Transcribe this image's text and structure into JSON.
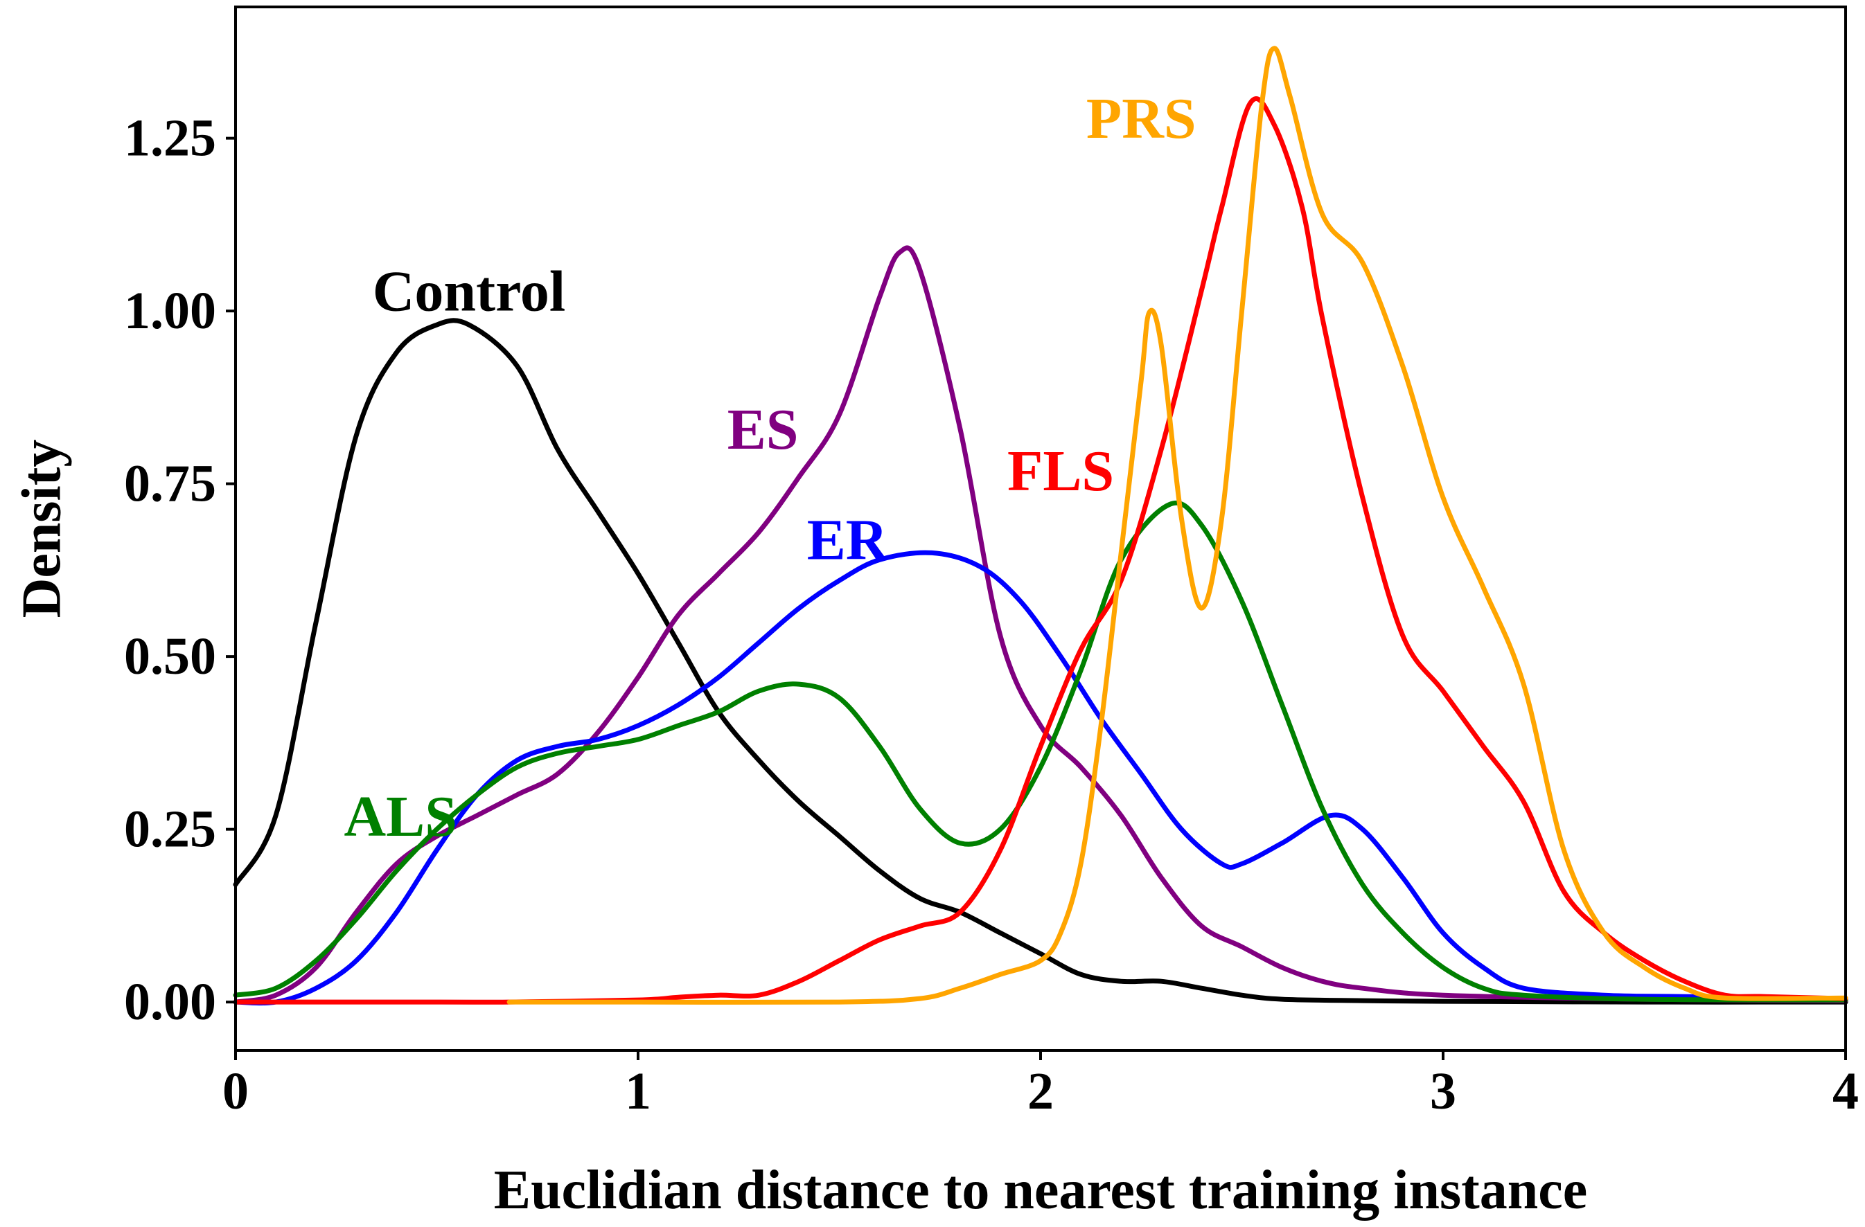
{
  "chart_data": {
    "type": "line",
    "title": "",
    "xlabel": "Euclidian distance to nearest training instance",
    "ylabel": "Density",
    "xlim": [
      0,
      4
    ],
    "ylim": [
      -0.07,
      1.44
    ],
    "xticks": [
      0,
      1,
      2,
      3,
      4
    ],
    "xtick_labels": [
      "0",
      "1",
      "2",
      "3",
      "4"
    ],
    "yticks": [
      0,
      0.25,
      0.5,
      0.75,
      1.0,
      1.25
    ],
    "ytick_labels": [
      "0.00",
      "0.25",
      "0.50",
      "0.75",
      "1.00",
      "1.25"
    ],
    "grid": false,
    "legend": "none (series labelled directly on the plot)",
    "series": [
      {
        "name": "Control",
        "color": "#000000",
        "label_at": [
          0.58,
          1.02
        ],
        "points": [
          [
            0,
            0.17
          ],
          [
            0.1,
            0.27
          ],
          [
            0.2,
            0.55
          ],
          [
            0.3,
            0.82
          ],
          [
            0.4,
            0.94
          ],
          [
            0.5,
            0.98
          ],
          [
            0.58,
            0.98
          ],
          [
            0.7,
            0.92
          ],
          [
            0.8,
            0.8
          ],
          [
            0.9,
            0.71
          ],
          [
            1.0,
            0.62
          ],
          [
            1.1,
            0.52
          ],
          [
            1.2,
            0.42
          ],
          [
            1.3,
            0.35
          ],
          [
            1.4,
            0.29
          ],
          [
            1.5,
            0.24
          ],
          [
            1.6,
            0.19
          ],
          [
            1.7,
            0.15
          ],
          [
            1.8,
            0.13
          ],
          [
            1.9,
            0.1
          ],
          [
            2.0,
            0.07
          ],
          [
            2.1,
            0.04
          ],
          [
            2.2,
            0.03
          ],
          [
            2.3,
            0.03
          ],
          [
            2.4,
            0.02
          ],
          [
            2.5,
            0.01
          ],
          [
            2.6,
            0.004
          ],
          [
            2.8,
            0.002
          ],
          [
            3.0,
            0.001
          ],
          [
            3.5,
            0
          ],
          [
            4.0,
            0
          ]
        ]
      },
      {
        "name": "ES",
        "color": "#800080",
        "label_at": [
          1.31,
          0.82
        ],
        "points": [
          [
            0,
            0
          ],
          [
            0.1,
            0.01
          ],
          [
            0.2,
            0.05
          ],
          [
            0.3,
            0.13
          ],
          [
            0.4,
            0.2
          ],
          [
            0.5,
            0.24
          ],
          [
            0.6,
            0.27
          ],
          [
            0.7,
            0.3
          ],
          [
            0.8,
            0.33
          ],
          [
            0.9,
            0.39
          ],
          [
            1.0,
            0.47
          ],
          [
            1.1,
            0.56
          ],
          [
            1.2,
            0.62
          ],
          [
            1.3,
            0.68
          ],
          [
            1.4,
            0.76
          ],
          [
            1.5,
            0.85
          ],
          [
            1.6,
            1.02
          ],
          [
            1.65,
            1.085
          ],
          [
            1.7,
            1.06
          ],
          [
            1.8,
            0.83
          ],
          [
            1.9,
            0.53
          ],
          [
            2.0,
            0.4
          ],
          [
            2.1,
            0.34
          ],
          [
            2.2,
            0.27
          ],
          [
            2.3,
            0.18
          ],
          [
            2.4,
            0.11
          ],
          [
            2.5,
            0.08
          ],
          [
            2.6,
            0.05
          ],
          [
            2.7,
            0.03
          ],
          [
            2.8,
            0.02
          ],
          [
            3.0,
            0.01
          ],
          [
            3.5,
            0.004
          ],
          [
            4.0,
            0.002
          ]
        ]
      },
      {
        "name": "ER",
        "color": "#0000ff",
        "label_at": [
          1.52,
          0.66
        ],
        "points": [
          [
            0,
            0
          ],
          [
            0.1,
            0
          ],
          [
            0.2,
            0.02
          ],
          [
            0.3,
            0.06
          ],
          [
            0.4,
            0.13
          ],
          [
            0.5,
            0.22
          ],
          [
            0.6,
            0.3
          ],
          [
            0.7,
            0.35
          ],
          [
            0.8,
            0.37
          ],
          [
            0.9,
            0.38
          ],
          [
            1.0,
            0.4
          ],
          [
            1.1,
            0.43
          ],
          [
            1.2,
            0.47
          ],
          [
            1.3,
            0.52
          ],
          [
            1.4,
            0.57
          ],
          [
            1.5,
            0.61
          ],
          [
            1.6,
            0.64
          ],
          [
            1.73,
            0.65
          ],
          [
            1.85,
            0.63
          ],
          [
            1.95,
            0.58
          ],
          [
            2.05,
            0.5
          ],
          [
            2.15,
            0.41
          ],
          [
            2.25,
            0.33
          ],
          [
            2.35,
            0.25
          ],
          [
            2.45,
            0.2
          ],
          [
            2.5,
            0.2
          ],
          [
            2.6,
            0.23
          ],
          [
            2.72,
            0.27
          ],
          [
            2.8,
            0.25
          ],
          [
            2.9,
            0.18
          ],
          [
            3.0,
            0.1
          ],
          [
            3.1,
            0.05
          ],
          [
            3.2,
            0.02
          ],
          [
            3.4,
            0.01
          ],
          [
            3.6,
            0.008
          ],
          [
            4.0,
            0.005
          ]
        ]
      },
      {
        "name": "ALS",
        "color": "#008000",
        "label_at": [
          0.41,
          0.26
        ],
        "points": [
          [
            0,
            0.01
          ],
          [
            0.1,
            0.02
          ],
          [
            0.2,
            0.06
          ],
          [
            0.3,
            0.12
          ],
          [
            0.4,
            0.19
          ],
          [
            0.5,
            0.25
          ],
          [
            0.6,
            0.3
          ],
          [
            0.7,
            0.34
          ],
          [
            0.8,
            0.36
          ],
          [
            0.9,
            0.37
          ],
          [
            1.0,
            0.38
          ],
          [
            1.1,
            0.4
          ],
          [
            1.2,
            0.42
          ],
          [
            1.3,
            0.45
          ],
          [
            1.4,
            0.46
          ],
          [
            1.5,
            0.44
          ],
          [
            1.6,
            0.37
          ],
          [
            1.7,
            0.28
          ],
          [
            1.8,
            0.23
          ],
          [
            1.9,
            0.25
          ],
          [
            2.0,
            0.34
          ],
          [
            2.1,
            0.48
          ],
          [
            2.2,
            0.64
          ],
          [
            2.32,
            0.72
          ],
          [
            2.4,
            0.69
          ],
          [
            2.5,
            0.58
          ],
          [
            2.6,
            0.43
          ],
          [
            2.7,
            0.28
          ],
          [
            2.8,
            0.17
          ],
          [
            2.9,
            0.1
          ],
          [
            3.0,
            0.05
          ],
          [
            3.1,
            0.02
          ],
          [
            3.2,
            0.01
          ],
          [
            3.5,
            0.004
          ],
          [
            4.0,
            0.003
          ]
        ]
      },
      {
        "name": "FLS",
        "color": "#ff0000",
        "label_at": [
          2.05,
          0.76
        ],
        "points": [
          [
            0,
            0
          ],
          [
            0.5,
            0
          ],
          [
            0.68,
            0
          ],
          [
            1.0,
            0.003
          ],
          [
            1.1,
            0.007
          ],
          [
            1.2,
            0.01
          ],
          [
            1.3,
            0.01
          ],
          [
            1.4,
            0.03
          ],
          [
            1.5,
            0.06
          ],
          [
            1.6,
            0.09
          ],
          [
            1.7,
            0.11
          ],
          [
            1.8,
            0.13
          ],
          [
            1.9,
            0.22
          ],
          [
            2.0,
            0.37
          ],
          [
            2.1,
            0.51
          ],
          [
            2.2,
            0.61
          ],
          [
            2.3,
            0.8
          ],
          [
            2.4,
            1.03
          ],
          [
            2.45,
            1.15
          ],
          [
            2.52,
            1.3
          ],
          [
            2.58,
            1.27
          ],
          [
            2.65,
            1.15
          ],
          [
            2.7,
            0.99
          ],
          [
            2.8,
            0.73
          ],
          [
            2.9,
            0.53
          ],
          [
            3.0,
            0.45
          ],
          [
            3.1,
            0.37
          ],
          [
            3.2,
            0.29
          ],
          [
            3.3,
            0.16
          ],
          [
            3.4,
            0.1
          ],
          [
            3.5,
            0.06
          ],
          [
            3.6,
            0.03
          ],
          [
            3.7,
            0.01
          ],
          [
            3.8,
            0.008
          ],
          [
            4.0,
            0.005
          ]
        ]
      },
      {
        "name": "PRS",
        "color": "#ffa500",
        "label_at": [
          2.25,
          1.27
        ],
        "points": [
          [
            0.68,
            0
          ],
          [
            1.0,
            0
          ],
          [
            1.5,
            0
          ],
          [
            1.7,
            0.005
          ],
          [
            1.8,
            0.02
          ],
          [
            1.9,
            0.04
          ],
          [
            2.0,
            0.06
          ],
          [
            2.05,
            0.1
          ],
          [
            2.1,
            0.2
          ],
          [
            2.15,
            0.4
          ],
          [
            2.2,
            0.65
          ],
          [
            2.25,
            0.9
          ],
          [
            2.27,
            0.998
          ],
          [
            2.3,
            0.95
          ],
          [
            2.35,
            0.7
          ],
          [
            2.4,
            0.57
          ],
          [
            2.45,
            0.7
          ],
          [
            2.5,
            1.0
          ],
          [
            2.55,
            1.3
          ],
          [
            2.58,
            1.38
          ],
          [
            2.62,
            1.31
          ],
          [
            2.7,
            1.14
          ],
          [
            2.8,
            1.07
          ],
          [
            2.9,
            0.92
          ],
          [
            3.0,
            0.73
          ],
          [
            3.1,
            0.6
          ],
          [
            3.2,
            0.46
          ],
          [
            3.3,
            0.22
          ],
          [
            3.4,
            0.1
          ],
          [
            3.5,
            0.05
          ],
          [
            3.6,
            0.02
          ],
          [
            3.7,
            0.006
          ],
          [
            4.0,
            0.006
          ]
        ]
      }
    ]
  }
}
